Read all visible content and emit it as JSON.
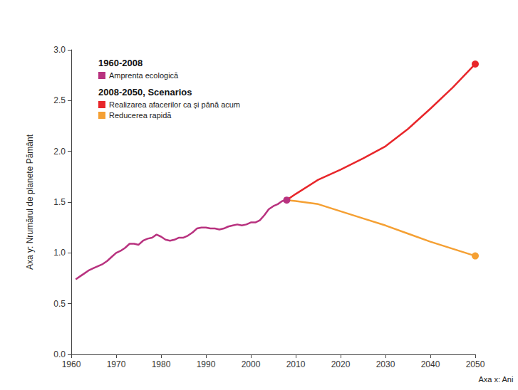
{
  "chart_data": {
    "type": "line",
    "y_label": "Axa y: Nrumărul de planete Pământ",
    "x_label": "Axa x: Ani",
    "annotations": [
      "1960-2008",
      "2008-2050, Scenarios"
    ],
    "xlim": [
      1960,
      2050
    ],
    "xticks": [
      1960,
      1970,
      1980,
      1990,
      2000,
      2010,
      2020,
      2030,
      2040,
      2050
    ],
    "ylim": [
      0,
      3
    ],
    "yticks": [
      {
        "value": 0,
        "label": "0.0"
      },
      {
        "value": 0.5,
        "label": "0.5"
      },
      {
        "value": 1,
        "label": "1.0"
      },
      {
        "value": 1.5,
        "label": "1.5"
      },
      {
        "value": 2,
        "label": "2.0"
      },
      {
        "value": 2.5,
        "label": "2.5"
      },
      {
        "value": 3,
        "label": "3.0"
      }
    ],
    "grid": false,
    "legend": "upper left",
    "series": [
      {
        "name": "Amprenta ecologică",
        "color": "#b8327f",
        "marker": "end",
        "line_style": "solid",
        "x": [
          1961,
          1962,
          1963,
          1964,
          1965,
          1966,
          1967,
          1968,
          1969,
          1970,
          1971,
          1972,
          1973,
          1974,
          1975,
          1976,
          1977,
          1978,
          1979,
          1980,
          1981,
          1982,
          1983,
          1984,
          1985,
          1986,
          1987,
          1988,
          1989,
          1990,
          1991,
          1992,
          1993,
          1994,
          1995,
          1996,
          1997,
          1998,
          1999,
          2000,
          2001,
          2002,
          2003,
          2004,
          2005,
          2006,
          2007,
          2008
        ],
        "values": [
          0.74,
          0.77,
          0.8,
          0.83,
          0.85,
          0.87,
          0.89,
          0.92,
          0.96,
          1.0,
          1.02,
          1.05,
          1.09,
          1.09,
          1.08,
          1.12,
          1.14,
          1.15,
          1.18,
          1.16,
          1.13,
          1.12,
          1.13,
          1.15,
          1.15,
          1.17,
          1.2,
          1.24,
          1.25,
          1.25,
          1.24,
          1.24,
          1.23,
          1.24,
          1.26,
          1.27,
          1.28,
          1.27,
          1.28,
          1.3,
          1.3,
          1.32,
          1.37,
          1.43,
          1.46,
          1.48,
          1.51,
          1.52
        ]
      },
      {
        "name": "Realizarea afacerilor ca și până acum",
        "color": "#e8262a",
        "marker": "end",
        "line_style": "solid",
        "x": [
          2008,
          2010,
          2015,
          2020,
          2025,
          2030,
          2035,
          2040,
          2045,
          2050
        ],
        "values": [
          1.52,
          1.58,
          1.72,
          1.82,
          1.93,
          2.05,
          2.22,
          2.42,
          2.63,
          2.86
        ]
      },
      {
        "name": "Reducerea rapidă",
        "color": "#f5a033",
        "marker": "end",
        "line_style": "solid",
        "x": [
          2008,
          2010,
          2015,
          2020,
          2025,
          2030,
          2035,
          2040,
          2045,
          2050
        ],
        "values": [
          1.52,
          1.51,
          1.48,
          1.41,
          1.34,
          1.27,
          1.19,
          1.11,
          1.04,
          0.97
        ]
      }
    ]
  }
}
